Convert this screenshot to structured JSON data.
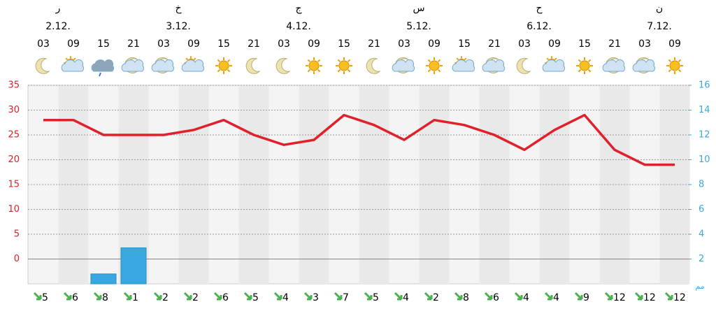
{
  "chart_data": {
    "type": "meteogram",
    "days": [
      {
        "name": "ر",
        "date": "2.12."
      },
      {
        "name": "خ",
        "date": "3.12."
      },
      {
        "name": "ج",
        "date": "4.12."
      },
      {
        "name": "س",
        "date": "5.12."
      },
      {
        "name": "ح",
        "date": "6.12."
      },
      {
        "name": "ن",
        "date": "7.12."
      }
    ],
    "categories": [
      "03",
      "09",
      "15",
      "21",
      "03",
      "09",
      "15",
      "21",
      "03",
      "09",
      "15",
      "21",
      "03",
      "09",
      "15",
      "21",
      "03",
      "09",
      "15",
      "21",
      "03",
      "09"
    ],
    "icons": [
      "moon",
      "suncloud",
      "rain",
      "cloudmoon",
      "cloudmoon",
      "suncloud",
      "sun",
      "moon",
      "moon",
      "sun",
      "sun",
      "moon",
      "cloudmoon",
      "sun",
      "suncloud",
      "cloudmoon",
      "moon",
      "suncloud",
      "sun",
      "cloudmoon",
      "cloudmoon",
      "sun"
    ],
    "series": [
      {
        "name": "temperature",
        "color": "#e0202a",
        "values": [
          28,
          28,
          25,
          25,
          25,
          26,
          28,
          25,
          23,
          24,
          29,
          27,
          24,
          28,
          27,
          25,
          22,
          26,
          29,
          22,
          19,
          19
        ]
      },
      {
        "name": "precipitation",
        "color": "#3aa8e0",
        "axis": "y2",
        "values": [
          null,
          null,
          0.8,
          2.9,
          null,
          null,
          null,
          null,
          null,
          null,
          null,
          null,
          null,
          null,
          null,
          null,
          null,
          null,
          null,
          null,
          null,
          null
        ]
      }
    ],
    "wind": [
      5,
      6,
      8,
      1,
      2,
      2,
      6,
      5,
      4,
      3,
      7,
      5,
      4,
      2,
      8,
      6,
      4,
      4,
      9,
      12,
      12,
      12
    ],
    "ylim": [
      -5,
      35
    ],
    "yticks": [
      0,
      5,
      10,
      15,
      20,
      25,
      30,
      35
    ],
    "y2lim": [
      0,
      16
    ],
    "y2ticks": [
      2,
      4,
      6,
      8,
      10,
      12,
      14,
      16
    ],
    "y2_label": "مم",
    "grid": true
  }
}
